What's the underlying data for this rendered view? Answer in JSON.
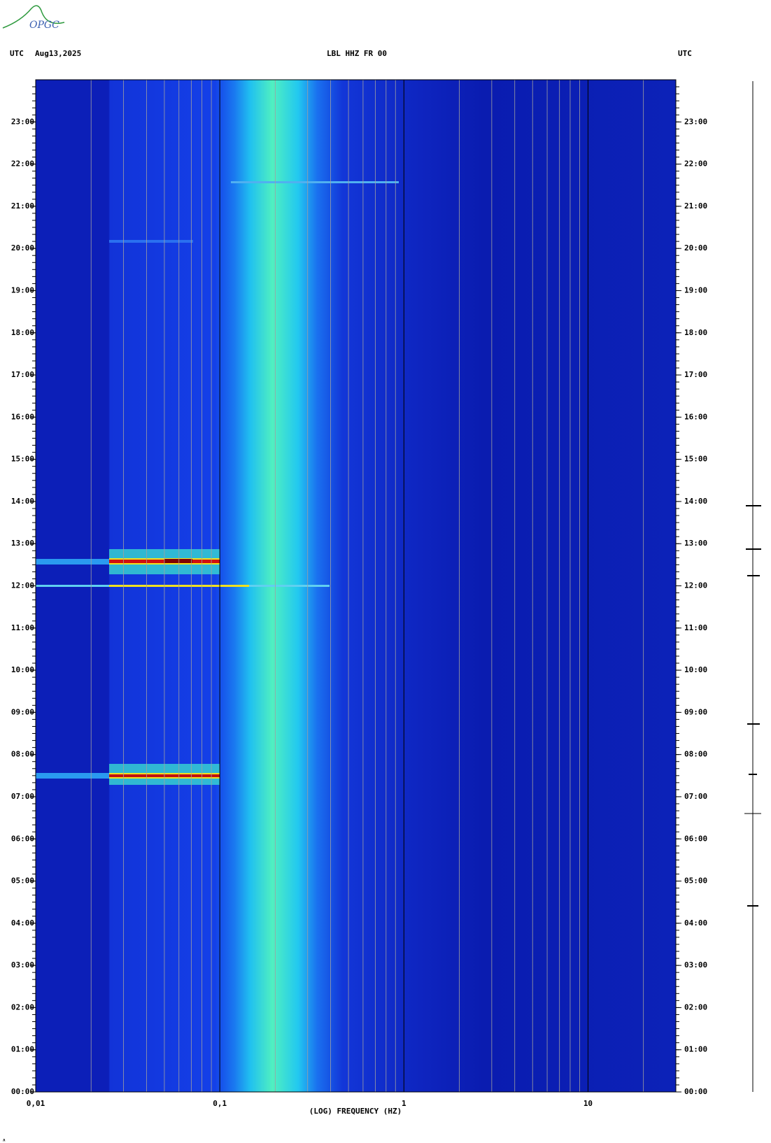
{
  "logo": "OPGC",
  "chart_data": {
    "type": "spectrogram",
    "title": "LBL HHZ FR 00",
    "header_left": "UTC",
    "date": "Aug13,2025",
    "header_right": "UTC",
    "x_label": "(LOG) FREQUENCY (HZ)",
    "x_scale": "log",
    "xlim": [
      0.01,
      30
    ],
    "xticks": [
      {
        "value": 0.01,
        "label": "0,01"
      },
      {
        "value": 0.1,
        "label": "0,1"
      },
      1,
      10
    ],
    "ylim": [
      0,
      24
    ],
    "yticks": [
      {
        "value": 0,
        "label": "00:00"
      },
      {
        "value": 1,
        "label": "01:00"
      },
      {
        "value": 2,
        "label": "02:00"
      },
      {
        "value": 3,
        "label": "03:00"
      },
      {
        "value": 4,
        "label": "04:00"
      },
      {
        "value": 5,
        "label": "05:00"
      },
      {
        "value": 6,
        "label": "06:00"
      },
      {
        "value": 7,
        "label": "07:00"
      },
      {
        "value": 8,
        "label": "08:00"
      },
      {
        "value": 9,
        "label": "09:00"
      },
      {
        "value": 10,
        "label": "10:00"
      },
      {
        "value": 11,
        "label": "11:00"
      },
      {
        "value": 12,
        "label": "12:00"
      },
      {
        "value": 13,
        "label": "13:00"
      },
      {
        "value": 14,
        "label": "14:00"
      },
      {
        "value": 15,
        "label": "15:00"
      },
      {
        "value": 16,
        "label": "16:00"
      },
      {
        "value": 17,
        "label": "17:00"
      },
      {
        "value": 18,
        "label": "18:00"
      },
      {
        "value": 19,
        "label": "19:00"
      },
      {
        "value": 20,
        "label": "20:00"
      },
      {
        "value": 21,
        "label": "21:00"
      },
      {
        "value": 22,
        "label": "22:00"
      },
      {
        "value": 23,
        "label": "23:00"
      }
    ],
    "grid": true
  }
}
